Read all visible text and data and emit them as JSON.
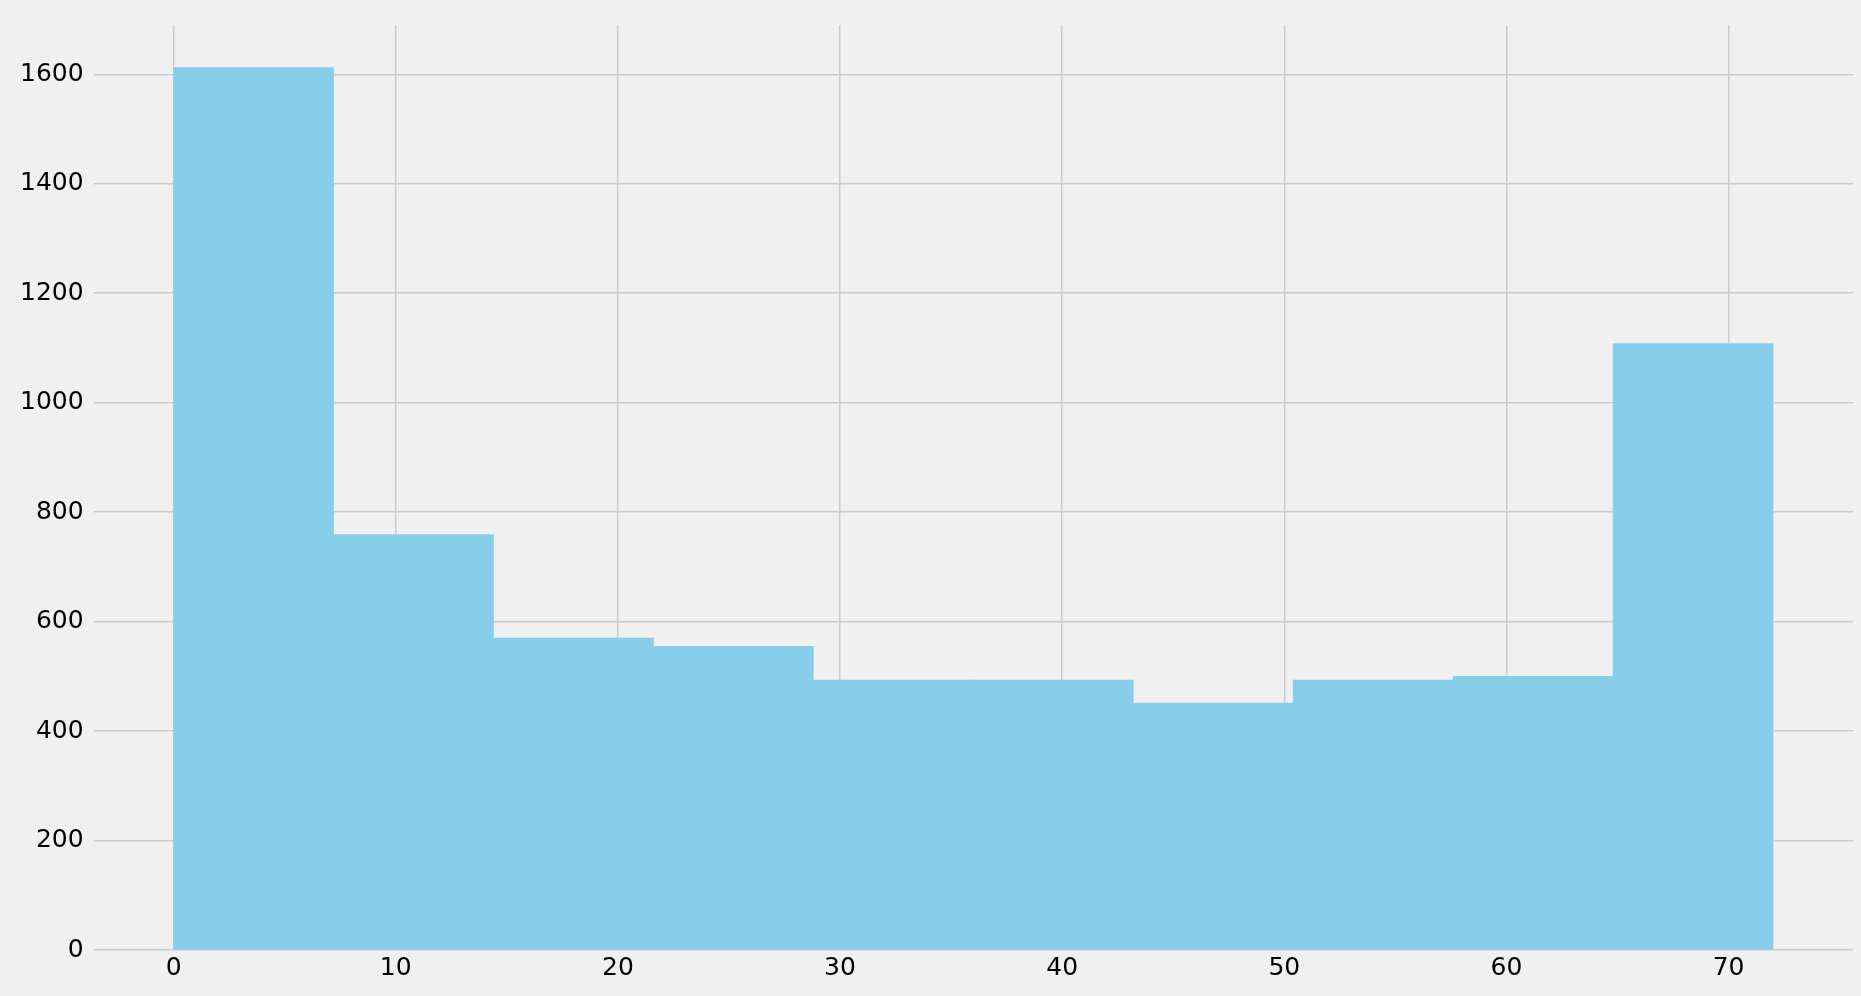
{
  "chart_data": {
    "type": "histogram",
    "bins": [
      0,
      7.2,
      14.4,
      21.6,
      28.8,
      36,
      43.2,
      50.4,
      57.6,
      64.8,
      72
    ],
    "values": [
      1612,
      759,
      570,
      555,
      493,
      493,
      451,
      493,
      500,
      1108
    ],
    "color": "#87ceeb",
    "xlim": [
      -3.6,
      75.6
    ],
    "ylim": [
      0,
      1690
    ],
    "xticks": [
      0,
      10,
      20,
      30,
      40,
      50,
      60,
      70
    ],
    "yticks": [
      0,
      200,
      400,
      600,
      800,
      1000,
      1200,
      1400,
      1600
    ],
    "grid": true
  }
}
